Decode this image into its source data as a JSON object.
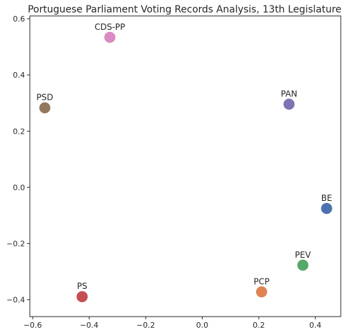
{
  "chart_data": {
    "type": "scatter",
    "title": "Portuguese Parliament Voting Records Analysis, 13th Legislature",
    "xlabel": "",
    "ylabel": "",
    "xlim": [
      -0.61,
      0.49
    ],
    "ylim": [
      -0.46,
      0.61
    ],
    "xticks": [
      -0.6,
      -0.4,
      -0.2,
      0.0,
      0.2,
      0.4
    ],
    "yticks": [
      -0.4,
      -0.2,
      0.0,
      0.2,
      0.4,
      0.6
    ],
    "xtick_labels": [
      "−0.6",
      "−0.4",
      "−0.2",
      "0.0",
      "0.2",
      "0.4"
    ],
    "ytick_labels": [
      "−0.4",
      "−0.2",
      "0.0",
      "0.2",
      "0.4",
      "0.6"
    ],
    "grid": false,
    "legend": "none",
    "points": [
      {
        "label": "BE",
        "x": 0.44,
        "y": -0.075,
        "color": "#4c72b0"
      },
      {
        "label": "PCP",
        "x": 0.21,
        "y": -0.372,
        "color": "#dd8452"
      },
      {
        "label": "PEV",
        "x": 0.356,
        "y": -0.277,
        "color": "#55a868"
      },
      {
        "label": "PS",
        "x": -0.425,
        "y": -0.389,
        "color": "#c44e52"
      },
      {
        "label": "PAN",
        "x": 0.307,
        "y": 0.296,
        "color": "#8172b3"
      },
      {
        "label": "PSD",
        "x": -0.557,
        "y": 0.283,
        "color": "#937860"
      },
      {
        "label": "CDS-PP",
        "x": -0.327,
        "y": 0.534,
        "color": "#da8bc3"
      }
    ]
  }
}
